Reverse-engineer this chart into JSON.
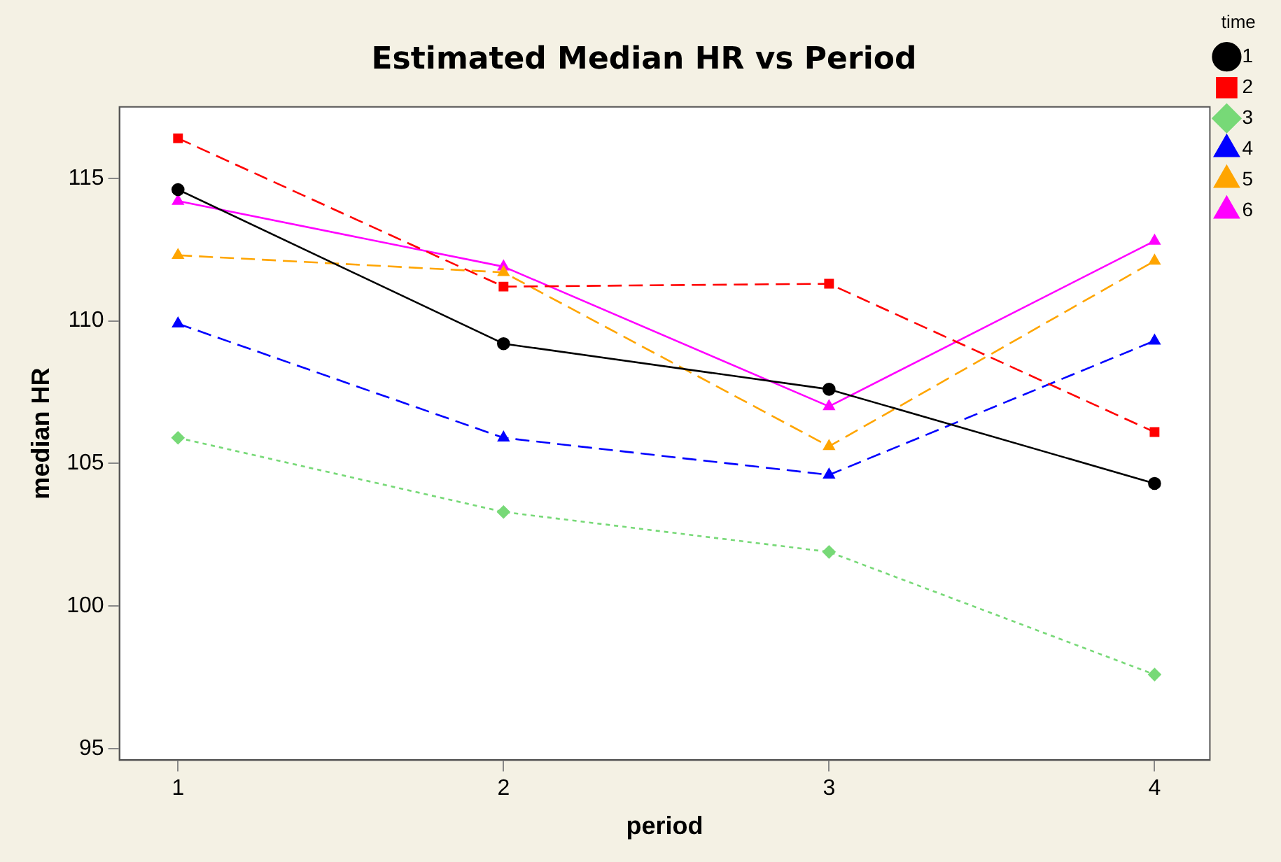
{
  "chart_data": {
    "type": "line",
    "title": "Estimated Median HR vs Period",
    "xlabel": "period",
    "ylabel": "median HR",
    "legend_title": "time",
    "legend": "top right",
    "x": [
      1,
      2,
      3,
      4
    ],
    "xlim": [
      0.82,
      4.17
    ],
    "xticks": [
      1,
      2,
      3,
      4
    ],
    "ylim": [
      94.6,
      117.5
    ],
    "yticks": [
      95,
      100,
      105,
      110,
      115
    ],
    "grid": false,
    "series": [
      {
        "name": "1",
        "color": "#000000",
        "values": [
          114.6,
          109.2,
          107.6,
          104.3
        ],
        "marker": "circle",
        "line_style": "solid"
      },
      {
        "name": "2",
        "color": "#ff0000",
        "values": [
          116.4,
          111.2,
          111.3,
          106.1
        ],
        "marker": "square",
        "line_style": "dashed"
      },
      {
        "name": "3",
        "color": "#77d977",
        "values": [
          105.9,
          103.3,
          101.9,
          97.6
        ],
        "marker": "diamond",
        "line_style": "dotted"
      },
      {
        "name": "4",
        "color": "#0000ff",
        "values": [
          109.9,
          105.9,
          104.6,
          109.3
        ],
        "marker": "triangle",
        "line_style": "dashed"
      },
      {
        "name": "5",
        "color": "#ffa500",
        "values": [
          112.3,
          111.7,
          105.6,
          112.1
        ],
        "marker": "triangle",
        "line_style": "dashed"
      },
      {
        "name": "6",
        "color": "#ff00ff",
        "values": [
          114.2,
          111.9,
          107.0,
          112.8
        ],
        "marker": "triangle",
        "line_style": "solid"
      }
    ]
  }
}
